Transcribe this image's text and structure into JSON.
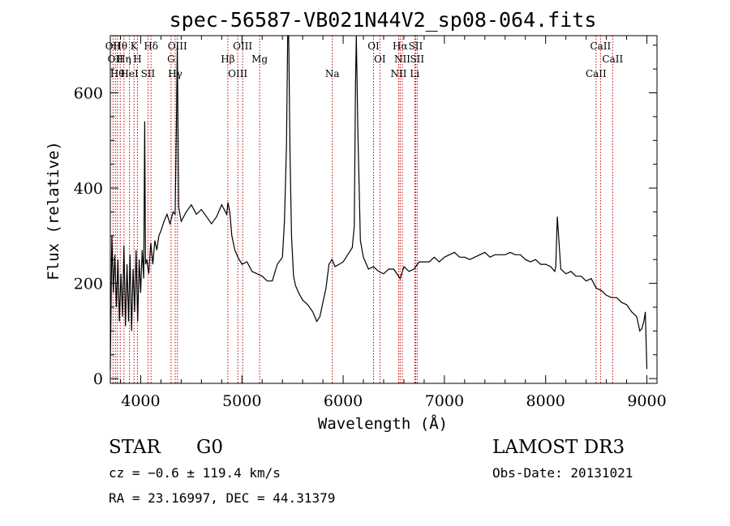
{
  "chart_data": {
    "type": "line",
    "title": "spec-56587-VB021N44V2_sp08-064.fits",
    "xlabel": "Wavelength (Å)",
    "ylabel": "Flux (relative)",
    "xlim": [
      3700,
      9100
    ],
    "ylim": [
      -10,
      720
    ],
    "xticks": [
      4000,
      5000,
      6000,
      7000,
      8000,
      9000
    ],
    "yticks": [
      0,
      200,
      400,
      600
    ],
    "grid": false,
    "line_color": "#000000",
    "marker_color": "#c00000",
    "series": [
      {
        "x": [
          3700,
          3715,
          3730,
          3745,
          3760,
          3775,
          3790,
          3805,
          3820,
          3835,
          3850,
          3865,
          3880,
          3895,
          3910,
          3925,
          3940,
          3955,
          3970,
          3985,
          4000,
          4015,
          4030,
          4040,
          4048,
          4060,
          4080,
          4100,
          4120,
          4140,
          4160,
          4180,
          4200,
          4230,
          4260,
          4290,
          4320,
          4340,
          4352,
          4362,
          4375,
          4400,
          4450,
          4500,
          4550,
          4600,
          4650,
          4700,
          4750,
          4800,
          4850,
          4862,
          4880,
          4900,
          4930,
          4960,
          5000,
          5050,
          5100,
          5150,
          5200,
          5250,
          5300,
          5350,
          5400,
          5420,
          5440,
          5452,
          5462,
          5475,
          5490,
          5510,
          5530,
          5560,
          5600,
          5650,
          5700,
          5740,
          5770,
          5800,
          5830,
          5860,
          5890,
          5920,
          5960,
          6000,
          6030,
          6060,
          6090,
          6110,
          6122,
          6130,
          6145,
          6170,
          6200,
          6250,
          6300,
          6350,
          6400,
          6450,
          6500,
          6563,
          6600,
          6650,
          6700,
          6750,
          6800,
          6850,
          6900,
          6950,
          7000,
          7050,
          7100,
          7150,
          7200,
          7250,
          7300,
          7350,
          7400,
          7450,
          7500,
          7550,
          7600,
          7650,
          7700,
          7750,
          7800,
          7850,
          7900,
          7950,
          8000,
          8050,
          8090,
          8100,
          8115,
          8150,
          8200,
          8250,
          8300,
          8350,
          8400,
          8450,
          8500,
          8550,
          8600,
          8650,
          8700,
          8750,
          8800,
          8850,
          8900,
          8930,
          8950,
          8970,
          8985,
          9000
        ],
        "y": [
          20,
          300,
          180,
          260,
          150,
          250,
          120,
          220,
          130,
          280,
          110,
          240,
          120,
          260,
          100,
          230,
          140,
          270,
          120,
          250,
          180,
          270,
          210,
          540,
          240,
          250,
          220,
          285,
          240,
          290,
          270,
          300,
          310,
          330,
          345,
          325,
          350,
          345,
          520,
          700,
          360,
          330,
          350,
          365,
          345,
          355,
          340,
          325,
          340,
          365,
          345,
          370,
          350,
          300,
          270,
          255,
          240,
          245,
          225,
          220,
          215,
          205,
          205,
          240,
          255,
          330,
          490,
          720,
          720,
          480,
          300,
          215,
          195,
          180,
          165,
          155,
          140,
          120,
          130,
          160,
          190,
          240,
          250,
          235,
          240,
          245,
          255,
          265,
          275,
          320,
          620,
          720,
          520,
          290,
          255,
          230,
          235,
          225,
          220,
          230,
          230,
          210,
          235,
          225,
          230,
          245,
          245,
          245,
          255,
          245,
          255,
          260,
          265,
          255,
          255,
          250,
          255,
          260,
          265,
          255,
          260,
          260,
          260,
          265,
          260,
          260,
          250,
          245,
          250,
          240,
          240,
          235,
          225,
          235,
          340,
          230,
          220,
          225,
          215,
          215,
          205,
          210,
          190,
          185,
          175,
          170,
          170,
          160,
          155,
          140,
          130,
          100,
          105,
          120,
          140,
          20
        ]
      }
    ],
    "line_markers": [
      {
        "wl": 3727,
        "label": "OII"
      },
      {
        "wl": 3750,
        "label": "OII"
      },
      {
        "wl": 3770,
        "label": "Hθ"
      },
      {
        "wl": 3798,
        "label": "Hθ"
      },
      {
        "wl": 3835,
        "label": "Hη"
      },
      {
        "wl": 3889,
        "label": "HeI"
      },
      {
        "wl": 3934,
        "label": "K"
      },
      {
        "wl": 3968,
        "label": "H"
      },
      {
        "wl": 4072,
        "label": "SII"
      },
      {
        "wl": 4102,
        "label": "Hδ"
      },
      {
        "wl": 4300,
        "label": "G"
      },
      {
        "wl": 4341,
        "label": "Hγ"
      },
      {
        "wl": 4363,
        "label": "OIII"
      },
      {
        "wl": 4861,
        "label": "Hβ"
      },
      {
        "wl": 4959,
        "label": "OIII"
      },
      {
        "wl": 5007,
        "label": "OIII"
      },
      {
        "wl": 5175,
        "label": "Mg"
      },
      {
        "wl": 5893,
        "label": "Na"
      },
      {
        "wl": 6300,
        "label": "OI"
      },
      {
        "wl": 6363,
        "label": "OI"
      },
      {
        "wl": 6548,
        "label": "NII"
      },
      {
        "wl": 6563,
        "label": "Hα"
      },
      {
        "wl": 6584,
        "label": "NII"
      },
      {
        "wl": 6707,
        "label": "Li"
      },
      {
        "wl": 6716,
        "label": "SII"
      },
      {
        "wl": 6731,
        "label": "SII"
      },
      {
        "wl": 8498,
        "label": "CaII"
      },
      {
        "wl": 8542,
        "label": "CaII"
      },
      {
        "wl": 8662,
        "label": "CaII"
      }
    ]
  },
  "info": {
    "object_class": "STAR",
    "subclass": "G0",
    "survey": "LAMOST DR3",
    "cz": "cz = −0.6 ± 119.4 km/s",
    "obs_date": "Obs-Date: 20131021",
    "coords": "RA =  23.16997, DEC =  44.31379"
  }
}
